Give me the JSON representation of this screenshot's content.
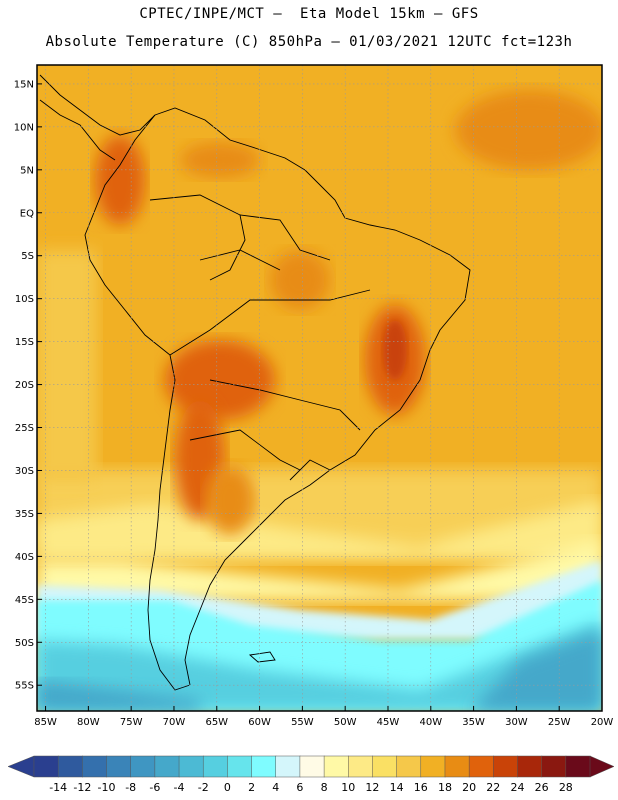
{
  "header": {
    "line1": "CPTEC/INPE/MCT –  Eta Model 15km – GFS",
    "line2": "Absolute Temperature (C) 850hPa – 01/03/2021 12UTC fct=123h"
  },
  "map": {
    "lat_labels": [
      "15N",
      "10N",
      "5N",
      "EQ",
      "5S",
      "10S",
      "15S",
      "20S",
      "25S",
      "30S",
      "35S",
      "40S",
      "45S",
      "50S",
      "55S"
    ],
    "lon_labels": [
      "85W",
      "80W",
      "75W",
      "70W",
      "65W",
      "60W",
      "55W",
      "50W",
      "45W",
      "40W",
      "35W",
      "30W",
      "25W",
      "20W"
    ],
    "lat_range": [
      17.2,
      -58
    ],
    "lon_range": [
      -86,
      -20
    ]
  },
  "colorbar": {
    "labels": [
      "-14",
      "-12",
      "-10",
      "-8",
      "-6",
      "-4",
      "-2",
      "0",
      "2",
      "4",
      "6",
      "8",
      "10",
      "12",
      "14",
      "16",
      "18",
      "20",
      "22",
      "24",
      "26",
      "28"
    ],
    "colors": [
      "#2a3f8f",
      "#2f5a9e",
      "#3470ad",
      "#3a84b8",
      "#3f96c2",
      "#45a8ca",
      "#4cbad4",
      "#56cfe0",
      "#66e4ec",
      "#7ffcff",
      "#d4f6fb",
      "#fffbe6",
      "#fff9a6",
      "#fdea86",
      "#fae064",
      "#f5c84a",
      "#f1b024",
      "#e88c14",
      "#e0620c",
      "#c94308",
      "#a8270a",
      "#8a1810",
      "#6a0a1a"
    ],
    "end_left": "#2a3f8f",
    "end_right": "#6a0a1a"
  }
}
